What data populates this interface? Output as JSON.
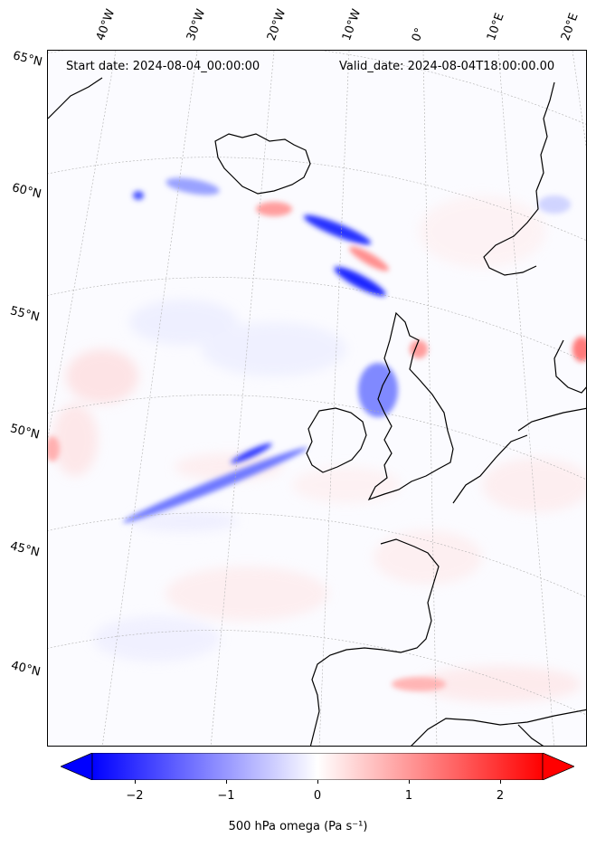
{
  "map": {
    "title_left": "Start date: 2024-08-04_00:00:00",
    "title_right": "Valid_date: 2024-08-04T18:00:00.00",
    "lon_labels": [
      "40°W",
      "30°W",
      "20°W",
      "10°W",
      "0°",
      "10°E",
      "20°E"
    ],
    "lat_labels": [
      "65°N",
      "60°N",
      "55°N",
      "50°N",
      "45°N",
      "40°N"
    ],
    "field": "500 hPa omega",
    "projection": "conic",
    "gridlines": true
  },
  "colorbar": {
    "label": "500 hPa omega (Pa s⁻¹)",
    "ticks": [
      "−2",
      "−1",
      "0",
      "1",
      "2"
    ],
    "range": [
      -2.6,
      2.6
    ],
    "extend": "both",
    "cmap": "bwr",
    "colors": {
      "min": "#0000ff",
      "mid": "#ffffff",
      "max": "#ff0000"
    }
  }
}
